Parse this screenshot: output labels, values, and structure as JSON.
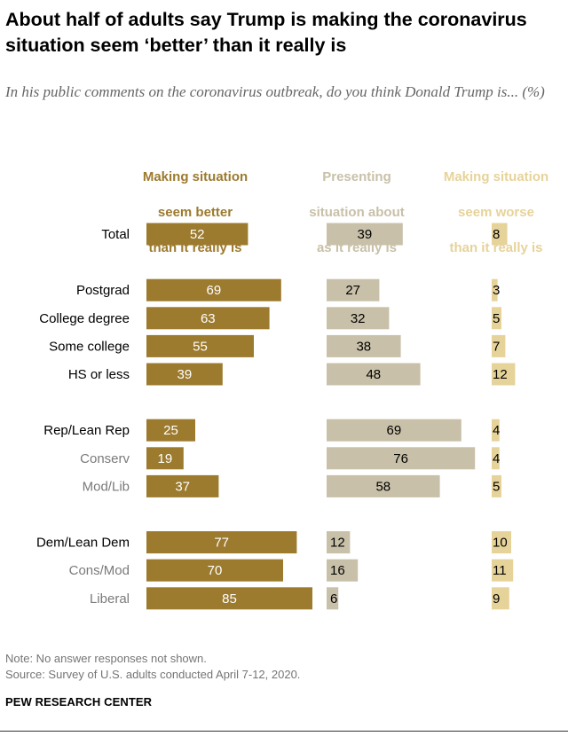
{
  "title": "About half of adults say Trump is making the coronavirus situation seem ‘better’ than it really is",
  "subtitle": "In his public comments on the coronavirus outbreak, do you think Donald Trump is... (%)",
  "footer": {
    "note": "Note: No answer responses not shown.",
    "source": "Source: Survey of U.S. adults conducted April 7-12, 2020.",
    "brand": "PEW RESEARCH CENTER"
  },
  "colors": {
    "better": "#9C7A2E",
    "about": "#C8C0A8",
    "worse": "#E6D39A",
    "label_dark": "#000000",
    "label_light": "#7A7A7A",
    "value_on_dark": "#ffffff",
    "value_on_light": "#000000"
  },
  "chart_data": {
    "type": "bar",
    "orientation": "horizontal",
    "title": "About half of adults say Trump is making the coronavirus situation seem ‘better’ than it really is",
    "xlabel": "",
    "ylabel": "",
    "xlim": [
      0,
      100
    ],
    "unit": "%",
    "categories": [
      {
        "label": "Total",
        "group": 0,
        "sub": false
      },
      {
        "label": "Postgrad",
        "group": 1,
        "sub": false
      },
      {
        "label": "College degree",
        "group": 1,
        "sub": false
      },
      {
        "label": "Some college",
        "group": 1,
        "sub": false
      },
      {
        "label": "HS or less",
        "group": 1,
        "sub": false
      },
      {
        "label": "Rep/Lean Rep",
        "group": 2,
        "sub": false
      },
      {
        "label": "Conserv",
        "group": 2,
        "sub": true
      },
      {
        "label": "Mod/Lib",
        "group": 2,
        "sub": true
      },
      {
        "label": "Dem/Lean Dem",
        "group": 3,
        "sub": false
      },
      {
        "label": "Cons/Mod",
        "group": 3,
        "sub": true
      },
      {
        "label": "Liberal",
        "group": 3,
        "sub": true
      }
    ],
    "series": [
      {
        "key": "better",
        "name": "Making situation seem better than it really is",
        "name_lines": [
          "Making situation",
          "seem better",
          "than it really is"
        ],
        "values": [
          52,
          69,
          63,
          55,
          39,
          25,
          19,
          37,
          77,
          70,
          85
        ]
      },
      {
        "key": "about",
        "name": "Presenting situation about as it really is",
        "name_lines": [
          "Presenting",
          "situation about",
          "as it really is"
        ],
        "values": [
          39,
          27,
          32,
          38,
          48,
          69,
          76,
          58,
          12,
          16,
          6
        ]
      },
      {
        "key": "worse",
        "name": "Making situation seem worse than it really is",
        "name_lines": [
          "Making situation",
          "seem worse",
          "than it really is"
        ],
        "values": [
          8,
          3,
          5,
          7,
          12,
          4,
          4,
          5,
          10,
          11,
          9
        ]
      }
    ]
  }
}
